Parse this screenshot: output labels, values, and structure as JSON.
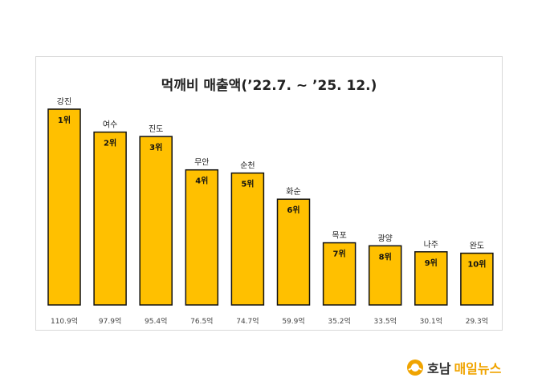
{
  "chart_data": {
    "type": "bar",
    "title": "먹깨비 매출액(’22.7. ~ ’25. 12.)",
    "categories": [
      "강진",
      "여수",
      "진도",
      "무안",
      "순천",
      "화순",
      "목포",
      "광양",
      "나주",
      "완도"
    ],
    "values": [
      110.9,
      97.9,
      95.4,
      76.5,
      74.7,
      59.9,
      35.2,
      33.5,
      30.1,
      29.3
    ],
    "value_labels": [
      "110.9억",
      "97.9억",
      "95.4억",
      "76.5억",
      "74.7억",
      "59.9억",
      "35.2억",
      "33.5억",
      "30.1억",
      "29.3억"
    ],
    "rank_labels": [
      "1위",
      "2위",
      "3위",
      "4위",
      "5위",
      "6위",
      "7위",
      "8위",
      "9위",
      "10위"
    ],
    "xlabel": "",
    "ylabel": "",
    "grid": false,
    "bar_color": "#ffc000",
    "bar_outline": "#111111"
  },
  "brand": {
    "name_part_a": "호남",
    "name_part_b": "매일뉴스",
    "logo": "sun-logo-icon",
    "color_a": "#333333",
    "color_b": "#f0a400"
  }
}
